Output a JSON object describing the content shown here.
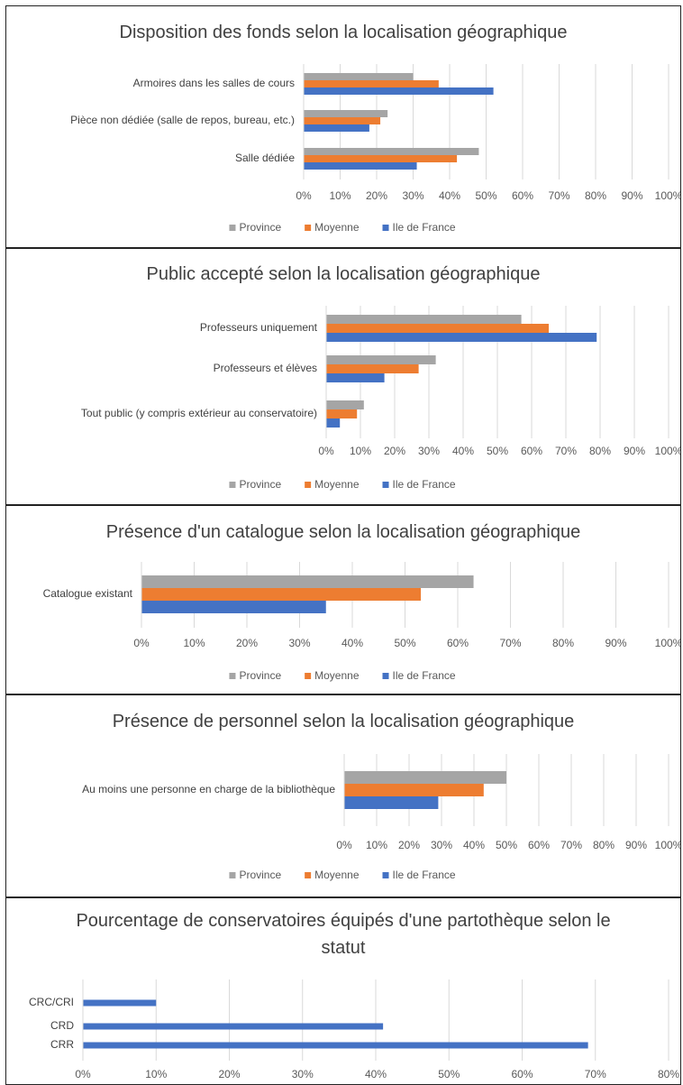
{
  "chart_data": [
    {
      "type": "bar",
      "title": "Disposition des fonds selon la localisation géographique",
      "categories": [
        "Armoires dans les salles de cours",
        "Pièce non dédiée (salle de repos, bureau, etc.)",
        "Salle dédiée"
      ],
      "series": [
        {
          "name": "Province",
          "color": "#a5a5a5",
          "values": [
            30,
            23,
            48
          ]
        },
        {
          "name": "Moyenne",
          "color": "#ed7d31",
          "values": [
            37,
            21,
            42
          ]
        },
        {
          "name": "Ile de France",
          "color": "#4472c4",
          "values": [
            52,
            18,
            31
          ]
        }
      ],
      "xlim": [
        0,
        100
      ],
      "xticks": [
        {
          "value": 0,
          "label": "0%"
        },
        {
          "value": 10,
          "label": "10%"
        },
        {
          "value": 20,
          "label": "20%"
        },
        {
          "value": 30,
          "label": "30%"
        },
        {
          "value": 40,
          "label": "40%"
        },
        {
          "value": 50,
          "label": "50%"
        },
        {
          "value": 60,
          "label": "60%"
        },
        {
          "value": 70,
          "label": "70%"
        },
        {
          "value": 80,
          "label": "80%"
        },
        {
          "value": 90,
          "label": "90%"
        },
        {
          "value": 100,
          "label": "100%"
        }
      ],
      "grid": true,
      "legend": "bottom"
    },
    {
      "type": "bar",
      "title": "Public accepté selon la localisation géographique",
      "categories": [
        "Professeurs uniquement",
        "Professeurs et élèves",
        "Tout public (y compris extérieur au conservatoire)"
      ],
      "series": [
        {
          "name": "Province",
          "color": "#a5a5a5",
          "values": [
            57,
            32,
            11
          ]
        },
        {
          "name": "Moyenne",
          "color": "#ed7d31",
          "values": [
            65,
            27,
            9
          ]
        },
        {
          "name": "Ile de France",
          "color": "#4472c4",
          "values": [
            79,
            17,
            4
          ]
        }
      ],
      "xlim": [
        0,
        100
      ],
      "xticks": [
        {
          "value": 0,
          "label": "0%"
        },
        {
          "value": 10,
          "label": "10%"
        },
        {
          "value": 20,
          "label": "20%"
        },
        {
          "value": 30,
          "label": "30%"
        },
        {
          "value": 40,
          "label": "40%"
        },
        {
          "value": 50,
          "label": "50%"
        },
        {
          "value": 60,
          "label": "60%"
        },
        {
          "value": 70,
          "label": "70%"
        },
        {
          "value": 80,
          "label": "80%"
        },
        {
          "value": 90,
          "label": "90%"
        },
        {
          "value": 100,
          "label": "100%"
        }
      ],
      "grid": true,
      "legend": "bottom"
    },
    {
      "type": "bar",
      "title": "Présence d'un catalogue selon la localisation géographique",
      "categories": [
        "Catalogue existant"
      ],
      "series": [
        {
          "name": "Province",
          "color": "#a5a5a5",
          "values": [
            63
          ]
        },
        {
          "name": "Moyenne",
          "color": "#ed7d31",
          "values": [
            53
          ]
        },
        {
          "name": "Ile de France",
          "color": "#4472c4",
          "values": [
            35
          ]
        }
      ],
      "xlim": [
        0,
        100
      ],
      "xticks": [
        {
          "value": 0,
          "label": "0%"
        },
        {
          "value": 10,
          "label": "10%"
        },
        {
          "value": 20,
          "label": "20%"
        },
        {
          "value": 30,
          "label": "30%"
        },
        {
          "value": 40,
          "label": "40%"
        },
        {
          "value": 50,
          "label": "50%"
        },
        {
          "value": 60,
          "label": "60%"
        },
        {
          "value": 70,
          "label": "70%"
        },
        {
          "value": 80,
          "label": "80%"
        },
        {
          "value": 90,
          "label": "90%"
        },
        {
          "value": 100,
          "label": "100%"
        }
      ],
      "grid": true,
      "legend": "bottom"
    },
    {
      "type": "bar",
      "title": "Présence de personnel selon la localisation géographique",
      "categories": [
        "Au moins une personne en charge de la bibliothèque"
      ],
      "series": [
        {
          "name": "Province",
          "color": "#a5a5a5",
          "values": [
            50
          ]
        },
        {
          "name": "Moyenne",
          "color": "#ed7d31",
          "values": [
            43
          ]
        },
        {
          "name": "Ile de France",
          "color": "#4472c4",
          "values": [
            29
          ]
        }
      ],
      "xlim": [
        0,
        100
      ],
      "xticks": [
        {
          "value": 0,
          "label": "0%"
        },
        {
          "value": 10,
          "label": "10%"
        },
        {
          "value": 20,
          "label": "20%"
        },
        {
          "value": 30,
          "label": "30%"
        },
        {
          "value": 40,
          "label": "40%"
        },
        {
          "value": 50,
          "label": "50%"
        },
        {
          "value": 60,
          "label": "60%"
        },
        {
          "value": 70,
          "label": "70%"
        },
        {
          "value": 80,
          "label": "80%"
        },
        {
          "value": 90,
          "label": "90%"
        },
        {
          "value": 100,
          "label": "100%"
        }
      ],
      "grid": true,
      "legend": "bottom"
    },
    {
      "type": "bar",
      "title": "Pourcentage de conservatoires équipés d'une partothèque selon le statut",
      "categories": [
        "CRC/CRI",
        "CRD",
        "CRR"
      ],
      "values": [
        10,
        41,
        69
      ],
      "color": "#4472c4",
      "xlim": [
        0,
        80
      ],
      "xticks": [
        {
          "value": 0,
          "label": "0%"
        },
        {
          "value": 10,
          "label": "10%"
        },
        {
          "value": 20,
          "label": "20%"
        },
        {
          "value": 30,
          "label": "30%"
        },
        {
          "value": 40,
          "label": "40%"
        },
        {
          "value": 50,
          "label": "50%"
        },
        {
          "value": 60,
          "label": "60%"
        },
        {
          "value": 70,
          "label": "70%"
        },
        {
          "value": 80,
          "label": "80%"
        }
      ],
      "grid": true
    }
  ]
}
